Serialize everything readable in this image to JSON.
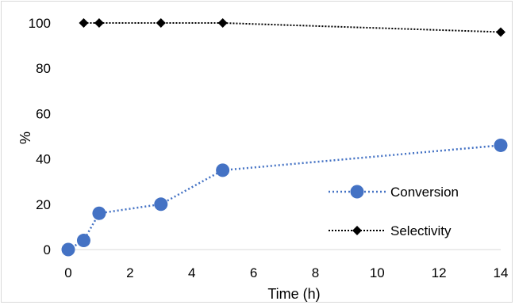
{
  "chart_data": {
    "type": "line",
    "title": "",
    "xlabel": "Time (h)",
    "ylabel": "%",
    "xlim": [
      0,
      14
    ],
    "ylim": [
      0,
      100
    ],
    "xticks": [
      0,
      2,
      4,
      6,
      8,
      10,
      12,
      14
    ],
    "yticks": [
      0,
      20,
      40,
      60,
      80,
      100
    ],
    "grid": false,
    "legend_position": "bottom-right",
    "series": [
      {
        "name": "Conversion",
        "color": "#4472c4",
        "marker": "circle",
        "line_style": "dotted",
        "x": [
          0,
          0.5,
          1,
          3,
          5,
          14
        ],
        "y": [
          0,
          4,
          16,
          20,
          35,
          46
        ]
      },
      {
        "name": "Selectivity",
        "color": "#000000",
        "marker": "diamond",
        "line_style": "dotted",
        "x": [
          0.5,
          1,
          3,
          5,
          14
        ],
        "y": [
          100,
          100,
          100,
          100,
          96
        ]
      }
    ]
  }
}
